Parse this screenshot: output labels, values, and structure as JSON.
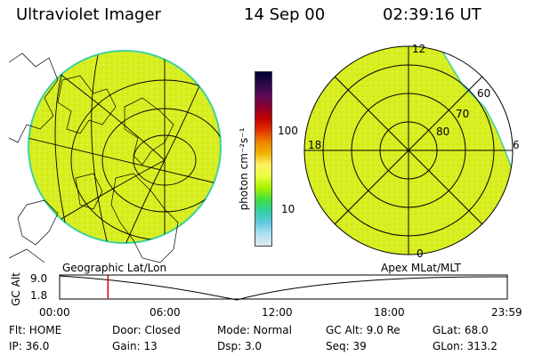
{
  "header": {
    "title": "Ultraviolet Imager",
    "date": "14 Sep 00",
    "time": "02:39:16 UT"
  },
  "left_map": {
    "caption": "Geographic Lat/Lon"
  },
  "right_map": {
    "caption": "Apex MLat/MLT",
    "mlt_labels": {
      "top": "12",
      "left": "18",
      "right": "6",
      "bottom": "0"
    },
    "lat_labels": [
      "60",
      "70",
      "80"
    ]
  },
  "colorbar": {
    "unit_label": "photon cm⁻²s⁻¹",
    "ticks": [
      "100",
      "10"
    ],
    "scale": "log",
    "colors": [
      "#000033",
      "#2a0a4a",
      "#5a0a5a",
      "#8b0030",
      "#c00000",
      "#e03000",
      "#f08000",
      "#f0b000",
      "#fff060",
      "#e8ff40",
      "#a8f000",
      "#40e040",
      "#30d0a0",
      "#60c8e0",
      "#b0e0f0",
      "#e0e8f0"
    ]
  },
  "timeline": {
    "axis_label": "GC Alt",
    "y_ticks": [
      "9.0",
      "1.8"
    ],
    "x_ticks": [
      "00:00",
      "06:00",
      "12:00",
      "18:00",
      "23:59"
    ],
    "current_time_fraction": 0.108
  },
  "status": {
    "flt": "Flt:  HOME",
    "door": "Door: Closed",
    "mode": "Mode:  Normal",
    "gcalt": "GC Alt:  9.0 Re",
    "glat": "GLat:    68.0",
    "ip": "IP:  36.0",
    "gain": "Gain:  13",
    "dsp": "Dsp:      3.0",
    "seq": "Seq:  39",
    "glon": "GLon:  313.2"
  },
  "colors": {
    "aurora_fill": "#d8ee20",
    "aurora_rim": "#40d0a0",
    "timeline_marker": "#e00000"
  }
}
